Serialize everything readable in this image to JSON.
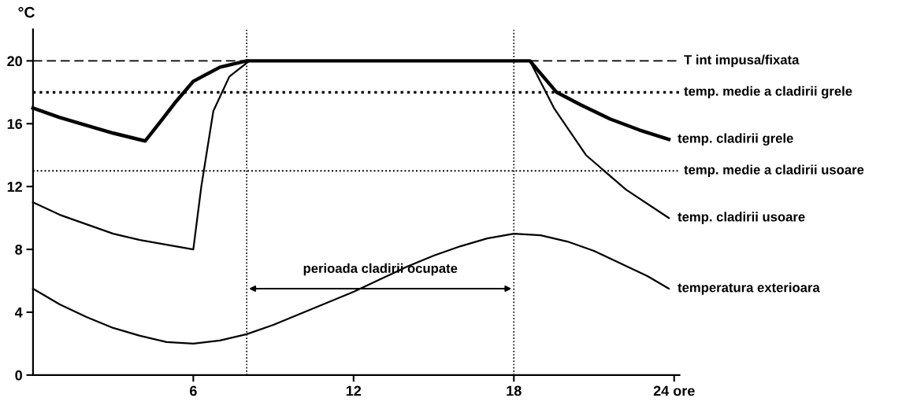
{
  "chart_data": {
    "type": "line",
    "ylabel": "°C",
    "xlim": [
      0,
      24.2
    ],
    "ylim": [
      0,
      22
    ],
    "xticks": [
      6,
      12,
      18,
      {
        "value": 24,
        "label": "24 ore"
      }
    ],
    "yticks": [
      0,
      4,
      8,
      12,
      16,
      20
    ],
    "grid": false,
    "legend": false,
    "marker": "none",
    "series": [
      {
        "name": "temp. cladirii grele",
        "color": "#000000",
        "x": [
          0,
          1,
          2,
          3,
          4.2,
          4.8,
          5.3,
          6,
          7,
          8,
          18.6,
          19.6,
          20.5,
          21.6,
          22.7,
          23.8
        ],
        "values": [
          17.0,
          16.4,
          15.9,
          15.4,
          14.9,
          16.2,
          17.3,
          18.7,
          19.6,
          20,
          20,
          18,
          17.2,
          16.3,
          15.6,
          15.0
        ]
      },
      {
        "name": "temp. cladirii usoare",
        "color": "#000000",
        "x": [
          0,
          1,
          2,
          3,
          4,
          5,
          6,
          6.3,
          6.75,
          7.35,
          8.1,
          18.6,
          19.5,
          20.7,
          22.2,
          23.8
        ],
        "values": [
          11,
          10.2,
          9.6,
          9.0,
          8.6,
          8.3,
          8.0,
          12,
          16.8,
          19,
          20,
          20,
          17,
          14,
          11.8,
          10
        ]
      },
      {
        "name": "temperatura exterioara",
        "color": "#000000",
        "x": [
          0,
          1,
          2,
          3,
          4,
          5,
          6,
          7,
          8,
          9,
          10,
          11,
          12,
          13,
          14,
          15,
          16,
          17,
          18,
          19,
          20,
          21,
          22,
          23,
          23.8
        ],
        "values": [
          5.5,
          4.5,
          3.7,
          3.0,
          2.5,
          2.1,
          2.0,
          2.2,
          2.6,
          3.2,
          3.9,
          4.6,
          5.3,
          6.1,
          6.9,
          7.6,
          8.2,
          8.7,
          9.0,
          8.9,
          8.5,
          7.9,
          7.1,
          6.3,
          5.5
        ]
      }
    ],
    "ref_lines": [
      {
        "axis": "y",
        "value": 20,
        "label": "T int impusa/fixata",
        "line_style": "dashed",
        "color": "#000000"
      },
      {
        "axis": "y",
        "value": 18,
        "label": "temp. medie a cladirii grele",
        "line_style": "dotted",
        "color": "#000000"
      },
      {
        "axis": "y",
        "value": 13,
        "label": "temp. medie a cladirii usoare",
        "line_style": "dotted",
        "color": "#000000"
      },
      {
        "axis": "x",
        "value": 8,
        "line_style": "dotted",
        "color": "#000000"
      },
      {
        "axis": "x",
        "value": 18,
        "line_style": "dotted",
        "color": "#000000"
      }
    ],
    "annotations": [
      "perioada cladirii ocupate"
    ]
  }
}
